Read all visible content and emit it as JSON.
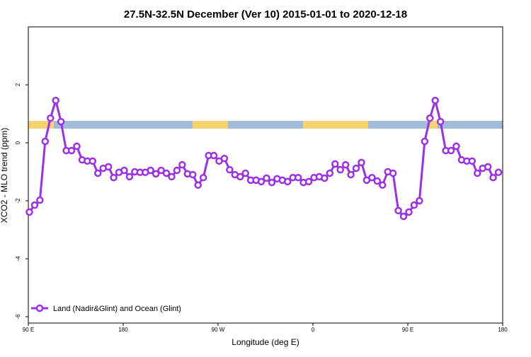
{
  "chart_data": {
    "type": "line",
    "title": "27.5N-32.5N December (Ver 10)   2015-01-01 to 2020-12-18",
    "x_label": "Longitude (deg E)",
    "y_label": "XCO2 - MLO trend (ppm)",
    "x": [
      91,
      96,
      101,
      106,
      111,
      116,
      121,
      126,
      131,
      136,
      141,
      146,
      151,
      156,
      161,
      166,
      171,
      176,
      181,
      186,
      191,
      196,
      201,
      206,
      211,
      216,
      221,
      226,
      231,
      236,
      241,
      246,
      251,
      256,
      261,
      266,
      271,
      276,
      281,
      286,
      291,
      296,
      301,
      306,
      311,
      316,
      321,
      326,
      331,
      336,
      341,
      346,
      351,
      356,
      361,
      366,
      371,
      376,
      381,
      386,
      391,
      396,
      401,
      406,
      411,
      416,
      421,
      426,
      431,
      436,
      441,
      446,
      451,
      456,
      461,
      466,
      471,
      476,
      481,
      486,
      491,
      496,
      501,
      506,
      511,
      516,
      521,
      526,
      531,
      536
    ],
    "series": [
      {
        "name": "Land (Nadir&Glint) and Ocean (Glint)",
        "color": "#9b30e6",
        "values": [
          -2.39,
          -2.15,
          -1.98,
          0.05,
          0.85,
          1.46,
          0.73,
          -0.27,
          -0.27,
          -0.12,
          -0.59,
          -0.63,
          -0.63,
          -1.05,
          -0.88,
          -0.83,
          -1.2,
          -1.02,
          -0.95,
          -1.17,
          -1.0,
          -1.02,
          -1.02,
          -0.95,
          -1.07,
          -0.95,
          -1.05,
          -1.17,
          -0.95,
          -0.76,
          -1.07,
          -1.1,
          -1.46,
          -1.2,
          -0.44,
          -0.44,
          -0.63,
          -0.54,
          -0.93,
          -1.1,
          -1.17,
          -1.05,
          -1.29,
          -1.29,
          -1.34,
          -1.22,
          -1.37,
          -1.24,
          -1.29,
          -1.34,
          -1.2,
          -1.2,
          -1.37,
          -1.34,
          -1.2,
          -1.17,
          -1.22,
          -1.05,
          -0.73,
          -0.93,
          -0.76,
          -1.1,
          -0.88,
          -0.68,
          -1.29,
          -1.2,
          -1.32,
          -1.46,
          -1.0,
          -1.05,
          -2.34,
          -2.54,
          -2.39,
          -2.15,
          -2.0,
          0.05,
          0.85,
          1.46,
          0.73,
          -0.27,
          -0.27,
          -0.12,
          -0.59,
          -0.63,
          -0.63,
          -1.05,
          -0.88,
          -0.83,
          -1.2,
          -1.02
        ]
      }
    ],
    "xlim": [
      90,
      540
    ],
    "xticks": [
      {
        "value": 90,
        "label": "90 E"
      },
      180,
      {
        "value": 270,
        "label": "90 W"
      },
      {
        "value": 360,
        "label": "0"
      },
      {
        "value": 450,
        "label": "90 E"
      },
      {
        "value": 540,
        "label": "180"
      }
    ],
    "ylim": [
      -6.22,
      4.0
    ],
    "yticks": [
      -6,
      -4,
      -2,
      0,
      2
    ],
    "legend": "bottom-left"
  }
}
